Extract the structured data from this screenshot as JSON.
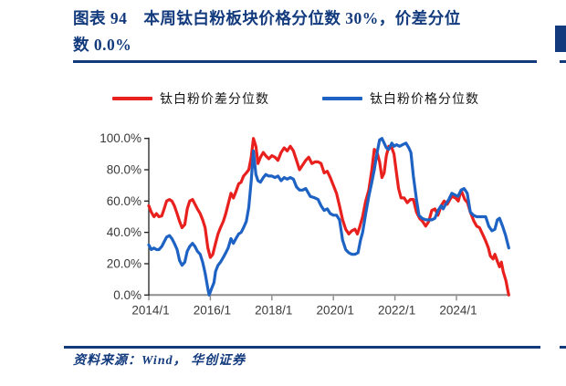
{
  "page": {
    "background": "#ffffff",
    "accent_navy": "#123a7d"
  },
  "header": {
    "title_line1": "图表 94　本周钛白粉板块价格分位数 30%，价差分位",
    "title_line2": "数 0.0%"
  },
  "legend": {
    "items": [
      {
        "id": "spread-percentile",
        "label": "钛白粉价差分位数",
        "color": "#e8201e"
      },
      {
        "id": "price-percentile",
        "label": "钛白粉价格分位数",
        "color": "#1e63c4"
      }
    ]
  },
  "footer": {
    "source": "资料来源：Wind， 华创证券"
  },
  "chart_data": {
    "type": "line",
    "title": "",
    "xlabel": "",
    "ylabel": "",
    "grid": false,
    "legend_position": "top",
    "ylim": [
      0,
      100
    ],
    "x_range": [
      2014,
      2025.75
    ],
    "y_tick_values": [
      100,
      80,
      60,
      40,
      20,
      0
    ],
    "y_tick_labels": [
      "100.0%",
      "80.0%",
      "60.0%",
      "40.0%",
      "20.0%",
      "0.0%"
    ],
    "x_tick_years": [
      2014,
      2016,
      2018,
      2020,
      2022,
      2024
    ],
    "x_tick_labels": [
      "2014/1",
      "2016/1",
      "2018/1",
      "2020/1",
      "2022/1",
      "2024/1"
    ],
    "axis_colors": {
      "y_axis": "#1f1f1f",
      "x_axis": "#8e8e8e",
      "tick_label": "#3a3a3a"
    },
    "series": [
      {
        "id": "spread-percentile",
        "name": "钛白粉价差分位数",
        "color": "#e8201e",
        "points": [
          [
            2014.0,
            57
          ],
          [
            2014.08,
            53
          ],
          [
            2014.17,
            50
          ],
          [
            2014.25,
            52
          ],
          [
            2014.33,
            50
          ],
          [
            2014.42,
            50.5
          ],
          [
            2014.5,
            55
          ],
          [
            2014.58,
            60
          ],
          [
            2014.67,
            61
          ],
          [
            2014.75,
            60
          ],
          [
            2014.83,
            57
          ],
          [
            2014.92,
            52
          ],
          [
            2015.0,
            47
          ],
          [
            2015.08,
            43
          ],
          [
            2015.17,
            45
          ],
          [
            2015.25,
            55
          ],
          [
            2015.33,
            60
          ],
          [
            2015.42,
            61
          ],
          [
            2015.5,
            58
          ],
          [
            2015.58,
            55
          ],
          [
            2015.67,
            52
          ],
          [
            2015.75,
            48
          ],
          [
            2015.83,
            43
          ],
          [
            2015.92,
            30
          ],
          [
            2016.0,
            24
          ],
          [
            2016.08,
            26
          ],
          [
            2016.17,
            33
          ],
          [
            2016.25,
            39
          ],
          [
            2016.33,
            43
          ],
          [
            2016.42,
            47
          ],
          [
            2016.5,
            52
          ],
          [
            2016.58,
            58
          ],
          [
            2016.67,
            65
          ],
          [
            2016.75,
            62
          ],
          [
            2016.83,
            66
          ],
          [
            2016.92,
            71
          ],
          [
            2017.0,
            72
          ],
          [
            2017.08,
            76
          ],
          [
            2017.17,
            78
          ],
          [
            2017.25,
            80
          ],
          [
            2017.33,
            88
          ],
          [
            2017.4,
            100
          ],
          [
            2017.48,
            95
          ],
          [
            2017.55,
            84
          ],
          [
            2017.63,
            88
          ],
          [
            2017.72,
            91
          ],
          [
            2017.8,
            89
          ],
          [
            2017.9,
            87
          ],
          [
            2018.0,
            89
          ],
          [
            2018.1,
            88
          ],
          [
            2018.2,
            86
          ],
          [
            2018.3,
            91
          ],
          [
            2018.4,
            94
          ],
          [
            2018.5,
            92
          ],
          [
            2018.6,
            95
          ],
          [
            2018.7,
            92
          ],
          [
            2018.8,
            86
          ],
          [
            2018.9,
            80
          ],
          [
            2019.0,
            83
          ],
          [
            2019.1,
            86
          ],
          [
            2019.2,
            88
          ],
          [
            2019.3,
            84
          ],
          [
            2019.4,
            85
          ],
          [
            2019.5,
            85
          ],
          [
            2019.6,
            84
          ],
          [
            2019.7,
            78
          ],
          [
            2019.8,
            79
          ],
          [
            2019.9,
            75
          ],
          [
            2020.0,
            70
          ],
          [
            2020.1,
            65
          ],
          [
            2020.2,
            57
          ],
          [
            2020.3,
            48
          ],
          [
            2020.4,
            42
          ],
          [
            2020.5,
            39
          ],
          [
            2020.6,
            41
          ],
          [
            2020.7,
            42
          ],
          [
            2020.78,
            39
          ],
          [
            2020.85,
            43
          ],
          [
            2020.95,
            50
          ],
          [
            2021.05,
            60
          ],
          [
            2021.15,
            67
          ],
          [
            2021.25,
            80
          ],
          [
            2021.33,
            93
          ],
          [
            2021.42,
            91
          ],
          [
            2021.5,
            85
          ],
          [
            2021.58,
            75
          ],
          [
            2021.65,
            78
          ],
          [
            2021.72,
            89
          ],
          [
            2021.8,
            95
          ],
          [
            2021.9,
            94
          ],
          [
            2021.97,
            90
          ],
          [
            2022.05,
            78
          ],
          [
            2022.12,
            68
          ],
          [
            2022.2,
            62
          ],
          [
            2022.3,
            62
          ],
          [
            2022.4,
            59
          ],
          [
            2022.5,
            61
          ],
          [
            2022.6,
            61
          ],
          [
            2022.7,
            53
          ],
          [
            2022.8,
            49
          ],
          [
            2022.9,
            47
          ],
          [
            2023.0,
            44
          ],
          [
            2023.1,
            47
          ],
          [
            2023.2,
            54
          ],
          [
            2023.3,
            55
          ],
          [
            2023.4,
            51
          ],
          [
            2023.5,
            57
          ],
          [
            2023.6,
            60
          ],
          [
            2023.7,
            58
          ],
          [
            2023.85,
            63
          ],
          [
            2023.97,
            62
          ],
          [
            2024.06,
            60
          ],
          [
            2024.15,
            67
          ],
          [
            2024.27,
            61
          ],
          [
            2024.36,
            59
          ],
          [
            2024.45,
            53
          ],
          [
            2024.57,
            47
          ],
          [
            2024.66,
            44
          ],
          [
            2024.75,
            43
          ],
          [
            2024.87,
            38
          ],
          [
            2024.96,
            34
          ],
          [
            2025.04,
            30
          ],
          [
            2025.1,
            25
          ],
          [
            2025.19,
            23
          ],
          [
            2025.25,
            26
          ],
          [
            2025.34,
            21
          ],
          [
            2025.4,
            18
          ],
          [
            2025.46,
            21
          ],
          [
            2025.52,
            15
          ],
          [
            2025.61,
            9
          ],
          [
            2025.66,
            4
          ],
          [
            2025.7,
            0
          ]
        ]
      },
      {
        "id": "price-percentile",
        "name": "钛白粉价格分位数",
        "color": "#1e63c4",
        "points": [
          [
            2014.0,
            32
          ],
          [
            2014.08,
            29
          ],
          [
            2014.17,
            30
          ],
          [
            2014.25,
            29
          ],
          [
            2014.33,
            29
          ],
          [
            2014.42,
            31
          ],
          [
            2014.5,
            34
          ],
          [
            2014.58,
            37
          ],
          [
            2014.67,
            38
          ],
          [
            2014.75,
            36
          ],
          [
            2014.83,
            33
          ],
          [
            2014.92,
            29
          ],
          [
            2015.0,
            22
          ],
          [
            2015.08,
            19
          ],
          [
            2015.17,
            21
          ],
          [
            2015.25,
            28
          ],
          [
            2015.33,
            31
          ],
          [
            2015.42,
            33
          ],
          [
            2015.5,
            31
          ],
          [
            2015.58,
            28
          ],
          [
            2015.67,
            26
          ],
          [
            2015.75,
            21
          ],
          [
            2015.83,
            14
          ],
          [
            2015.92,
            4
          ],
          [
            2015.96,
            0
          ],
          [
            2016.04,
            4
          ],
          [
            2016.12,
            8
          ],
          [
            2016.17,
            15
          ],
          [
            2016.25,
            19
          ],
          [
            2016.33,
            21
          ],
          [
            2016.42,
            24
          ],
          [
            2016.5,
            27
          ],
          [
            2016.58,
            30
          ],
          [
            2016.67,
            36
          ],
          [
            2016.75,
            33
          ],
          [
            2016.83,
            36
          ],
          [
            2016.92,
            39
          ],
          [
            2017.0,
            40
          ],
          [
            2017.08,
            43
          ],
          [
            2017.17,
            47
          ],
          [
            2017.25,
            56
          ],
          [
            2017.33,
            73
          ],
          [
            2017.4,
            92
          ],
          [
            2017.48,
            77
          ],
          [
            2017.55,
            73
          ],
          [
            2017.63,
            72
          ],
          [
            2017.72,
            75
          ],
          [
            2017.8,
            77
          ],
          [
            2017.9,
            76
          ],
          [
            2018.0,
            76
          ],
          [
            2018.1,
            75
          ],
          [
            2018.2,
            76
          ],
          [
            2018.3,
            73
          ],
          [
            2018.4,
            75
          ],
          [
            2018.5,
            74
          ],
          [
            2018.6,
            75
          ],
          [
            2018.7,
            74
          ],
          [
            2018.8,
            69
          ],
          [
            2018.9,
            67
          ],
          [
            2019.0,
            67
          ],
          [
            2019.1,
            68
          ],
          [
            2019.25,
            63
          ],
          [
            2019.4,
            62
          ],
          [
            2019.5,
            61
          ],
          [
            2019.6,
            57
          ],
          [
            2019.7,
            54
          ],
          [
            2019.8,
            55
          ],
          [
            2019.9,
            52
          ],
          [
            2020.0,
            51
          ],
          [
            2020.1,
            51
          ],
          [
            2020.2,
            48
          ],
          [
            2020.3,
            35
          ],
          [
            2020.4,
            29
          ],
          [
            2020.5,
            27
          ],
          [
            2020.6,
            26
          ],
          [
            2020.7,
            26
          ],
          [
            2020.8,
            27
          ],
          [
            2020.88,
            35
          ],
          [
            2020.95,
            40
          ],
          [
            2021.05,
            52
          ],
          [
            2021.15,
            63
          ],
          [
            2021.25,
            72
          ],
          [
            2021.33,
            80
          ],
          [
            2021.42,
            91
          ],
          [
            2021.5,
            99
          ],
          [
            2021.58,
            100
          ],
          [
            2021.65,
            97
          ],
          [
            2021.72,
            94
          ],
          [
            2021.8,
            93
          ],
          [
            2021.9,
            97
          ],
          [
            2021.97,
            95
          ],
          [
            2022.05,
            96
          ],
          [
            2022.15,
            95
          ],
          [
            2022.25,
            96
          ],
          [
            2022.36,
            97
          ],
          [
            2022.45,
            94
          ],
          [
            2022.52,
            91
          ],
          [
            2022.6,
            76
          ],
          [
            2022.7,
            61
          ],
          [
            2022.78,
            51
          ],
          [
            2022.88,
            49
          ],
          [
            2023.0,
            48
          ],
          [
            2023.1,
            48
          ],
          [
            2023.2,
            48
          ],
          [
            2023.3,
            49
          ],
          [
            2023.4,
            54
          ],
          [
            2023.5,
            57
          ],
          [
            2023.57,
            55
          ],
          [
            2023.65,
            58
          ],
          [
            2023.75,
            61
          ],
          [
            2023.85,
            65
          ],
          [
            2023.95,
            64
          ],
          [
            2024.05,
            63
          ],
          [
            2024.15,
            67
          ],
          [
            2024.25,
            68
          ],
          [
            2024.35,
            65
          ],
          [
            2024.45,
            53
          ],
          [
            2024.55,
            51
          ],
          [
            2024.66,
            50
          ],
          [
            2024.8,
            50
          ],
          [
            2024.95,
            50
          ],
          [
            2025.05,
            44
          ],
          [
            2025.15,
            41
          ],
          [
            2025.25,
            42
          ],
          [
            2025.33,
            48
          ],
          [
            2025.4,
            49
          ],
          [
            2025.5,
            44
          ],
          [
            2025.6,
            38
          ],
          [
            2025.7,
            30
          ]
        ]
      }
    ]
  }
}
